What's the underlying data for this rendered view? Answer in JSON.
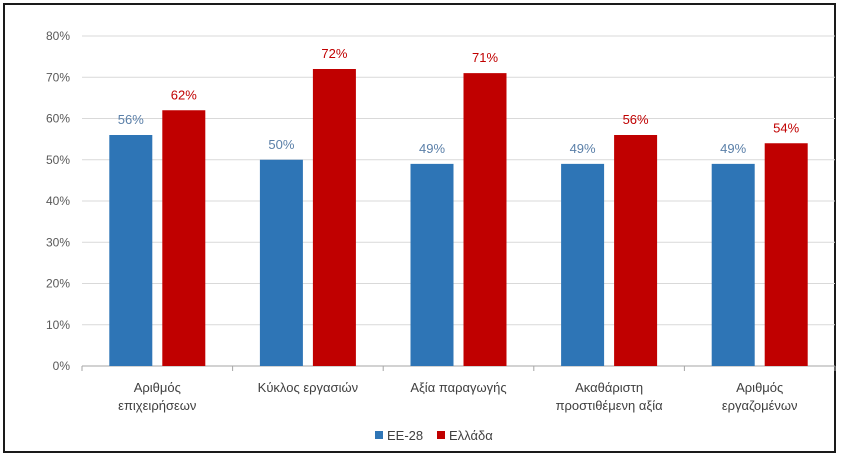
{
  "chart_data": {
    "type": "bar",
    "categories": [
      [
        "Αριθμός",
        "επιχειρήσεων"
      ],
      [
        "Κύκλος εργασιών"
      ],
      [
        "Αξία παραγωγής"
      ],
      [
        "Ακαθάριστη",
        "προστιθέμενη αξία"
      ],
      [
        "Αριθμός",
        "εργαζομένων"
      ]
    ],
    "series": [
      {
        "name": "ΕΕ-28",
        "values": [
          56,
          50,
          49,
          49,
          49
        ],
        "labels": [
          "56%",
          "50%",
          "49%",
          "49%",
          "49%"
        ],
        "color": "#2e75b6",
        "label_color": "#5a7fa8"
      },
      {
        "name": "Ελλάδα",
        "values": [
          62,
          72,
          71,
          56,
          54
        ],
        "labels": [
          "62%",
          "72%",
          "71%",
          "56%",
          "54%"
        ],
        "color": "#c00000",
        "label_color": "#c00000"
      }
    ],
    "ylim": [
      0,
      80
    ],
    "yticks": [
      "0%",
      "10%",
      "20%",
      "30%",
      "40%",
      "50%",
      "60%",
      "70%",
      "80%"
    ],
    "grid": true,
    "legend_position": "bottom"
  }
}
